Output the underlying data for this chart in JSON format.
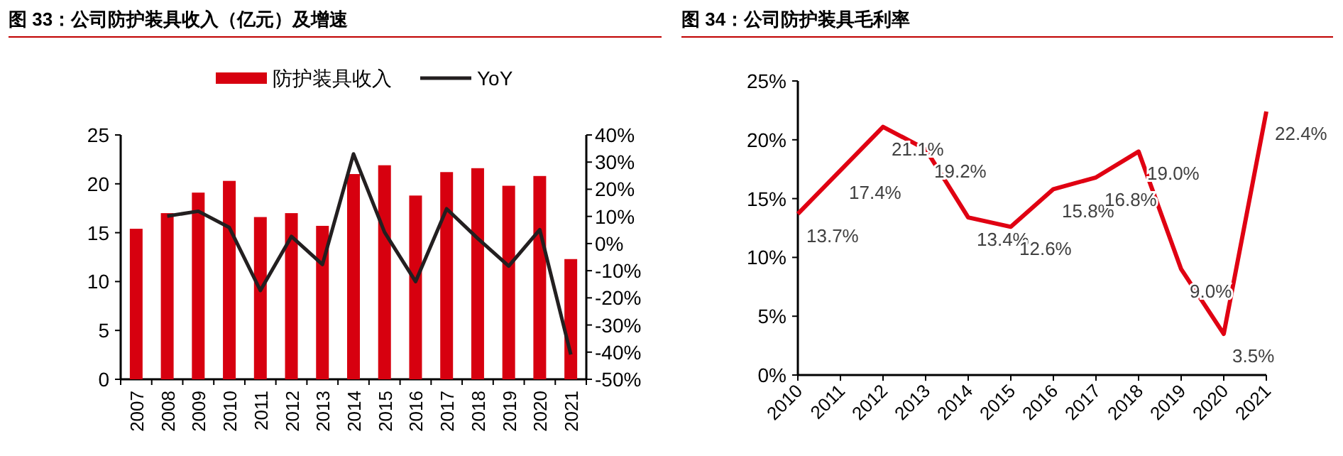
{
  "chart_data": [
    {
      "type": "bar",
      "title": "图 33：公司防护装具收入（亿元）及增速",
      "categories": [
        "2007",
        "2008",
        "2009",
        "2010",
        "2011",
        "2012",
        "2013",
        "2014",
        "2015",
        "2016",
        "2017",
        "2018",
        "2019",
        "2020",
        "2021"
      ],
      "series": [
        {
          "name": "防护装具收入",
          "color": "#d7000f",
          "values": [
            15.4,
            17.0,
            19.1,
            20.3,
            16.6,
            17.0,
            15.7,
            21.0,
            21.9,
            18.8,
            21.2,
            21.6,
            19.8,
            20.8,
            12.3
          ]
        },
        {
          "name": "YoY",
          "type": "line",
          "axis": "y2",
          "color": "#231f20",
          "values": [
            null,
            10.1,
            11.9,
            5.9,
            -17.3,
            2.6,
            -7.7,
            33.0,
            4.2,
            -14.0,
            12.8,
            1.9,
            -8.3,
            5.1,
            -40.9
          ]
        }
      ],
      "ylim": [
        0,
        25
      ],
      "yticks": [
        0,
        5,
        10,
        15,
        20,
        25
      ],
      "y2lim": [
        -50,
        40
      ],
      "y2ticks": [
        {
          "value": -50,
          "label": "-50%"
        },
        {
          "value": -40,
          "label": "-40%"
        },
        {
          "value": -30,
          "label": "-30%"
        },
        {
          "value": -20,
          "label": "-20%"
        },
        {
          "value": -10,
          "label": "-10%"
        },
        {
          "value": 0,
          "label": "0%"
        },
        {
          "value": 10,
          "label": "10%"
        },
        {
          "value": 20,
          "label": "20%"
        },
        {
          "value": 30,
          "label": "30%"
        },
        {
          "value": 40,
          "label": "40%"
        }
      ],
      "legend": "top",
      "grid": false
    },
    {
      "type": "line",
      "title": "图 34：公司防护装具毛利率",
      "categories": [
        "2010",
        "2011",
        "2012",
        "2013",
        "2014",
        "2015",
        "2016",
        "2017",
        "2018",
        "2019",
        "2020",
        "2021"
      ],
      "values": [
        13.7,
        17.4,
        21.1,
        19.2,
        13.4,
        12.6,
        15.8,
        16.8,
        19.0,
        9.0,
        3.5,
        22.4
      ],
      "value_labels": [
        "13.7%",
        "17.4%",
        "21.1%",
        "19.2%",
        "13.4%",
        "12.6%",
        "15.8%",
        "16.8%",
        "19.0%",
        "9.0%",
        "3.5%",
        "22.4%"
      ],
      "color": "#e00012",
      "ylim": [
        0,
        25
      ],
      "yticks": [
        {
          "value": 0,
          "label": "0%"
        },
        {
          "value": 5,
          "label": "5%"
        },
        {
          "value": 10,
          "label": "10%"
        },
        {
          "value": 15,
          "label": "15%"
        },
        {
          "value": 20,
          "label": "20%"
        },
        {
          "value": 25,
          "label": "25%"
        }
      ],
      "grid": false,
      "legend": false
    }
  ]
}
